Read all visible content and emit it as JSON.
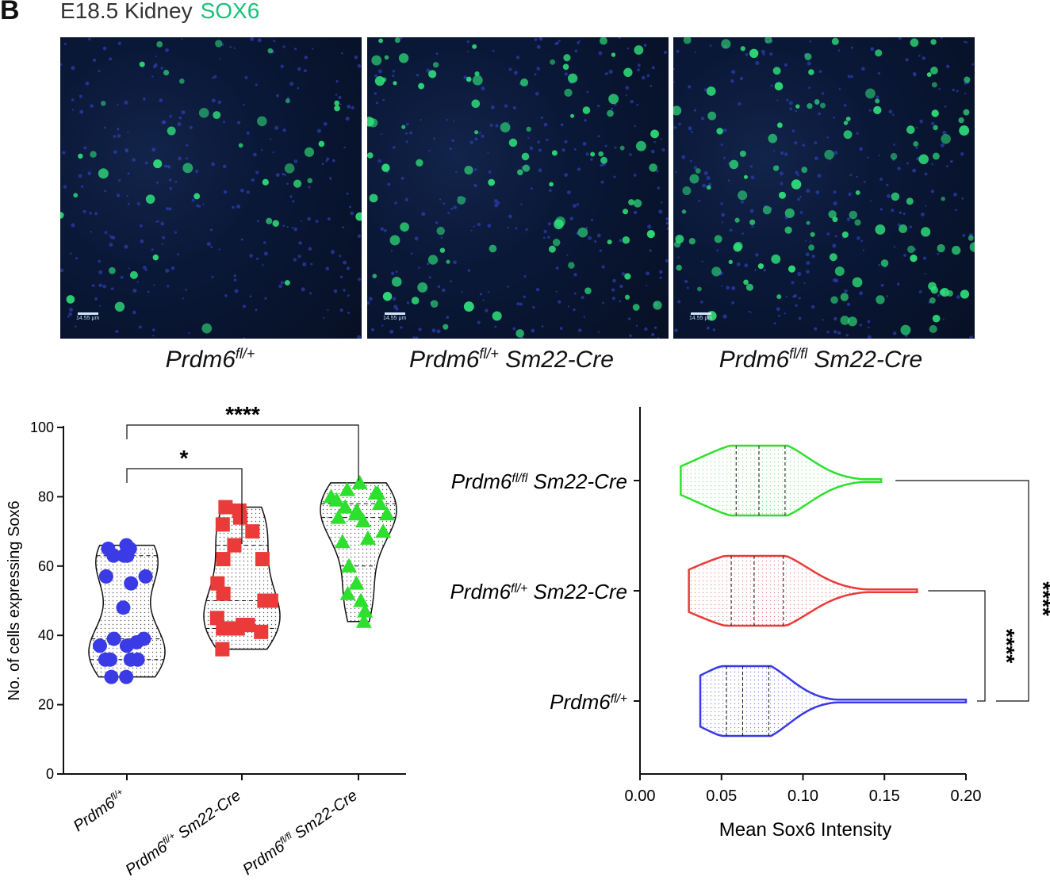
{
  "panel_letter": "B",
  "header": {
    "tissue": "E18.5 Kidney",
    "stain": "SOX6"
  },
  "colors": {
    "stain_green": "#19c27a",
    "blue": "#3a3ae6",
    "red": "#ea3a3a",
    "green": "#2ee02e"
  },
  "micrographs": [
    {
      "genotype": "Prdm6",
      "sup": "fl/+",
      "suffix": "",
      "scale": "14.55 μm"
    },
    {
      "genotype": "Prdm6",
      "sup": "fl/+",
      "suffix": " Sm22-Cre",
      "scale": "14.55 μm"
    },
    {
      "genotype": "Prdm6",
      "sup": "fl/fl",
      "suffix": " Sm22-Cre",
      "scale": "14.55 μm"
    }
  ],
  "chart_data": [
    {
      "type": "violin",
      "ylabel": "No. of cells expressing Sox6",
      "ylim": [
        0,
        100
      ],
      "yticks": [
        0,
        20,
        40,
        60,
        80,
        100
      ],
      "categories": [
        "Prdm6fl/+",
        "Prdm6fl/+ Sm22-Cre",
        "Prdm6fl/fl Sm22-Cre"
      ],
      "category_labels": [
        {
          "genotype": "Prdm6",
          "sup": "fl/+",
          "suffix": ""
        },
        {
          "genotype": "Prdm6",
          "sup": "fl/+",
          "suffix": " Sm22-Cre"
        },
        {
          "genotype": "Prdm6",
          "sup": "fl/fl",
          "suffix": " Sm22-Cre"
        }
      ],
      "series": [
        {
          "values": [
            66,
            65,
            65,
            63,
            63,
            63,
            57,
            57,
            55,
            48,
            39,
            39,
            38,
            37,
            37,
            33,
            33,
            33,
            33,
            28,
            28
          ]
        },
        {
          "values": [
            77,
            76,
            74,
            72,
            70,
            66,
            62,
            62,
            55,
            52,
            50,
            50,
            45,
            43,
            43,
            42,
            42,
            42,
            41,
            36
          ]
        },
        {
          "values": [
            84,
            82,
            81,
            81,
            80,
            79,
            78,
            77,
            76,
            75,
            75,
            74,
            73,
            70,
            68,
            67,
            60,
            55,
            52,
            50,
            47,
            44
          ]
        }
      ],
      "significance": [
        {
          "pair": [
            0,
            1
          ],
          "label": "*"
        },
        {
          "pair": [
            0,
            2
          ],
          "label": "****"
        }
      ]
    },
    {
      "type": "violin",
      "orientation": "horizontal",
      "xlabel": "Mean Sox6 Intensity",
      "xlim": [
        0,
        0.2
      ],
      "xticks": [
        "0.00",
        "0.05",
        "0.10",
        "0.15",
        "0.20"
      ],
      "categories": [
        "Prdm6fl/fl Sm22-Cre",
        "Prdm6fl/+ Sm22-Cre",
        "Prdm6fl/+"
      ],
      "category_labels": [
        {
          "genotype": "Prdm6",
          "sup": "fl/fl",
          "suffix": " Sm22-Cre"
        },
        {
          "genotype": "Prdm6",
          "sup": "fl/+",
          "suffix": " Sm22-Cre"
        },
        {
          "genotype": "Prdm6",
          "sup": "fl/+",
          "suffix": ""
        }
      ],
      "series": [
        {
          "range": [
            0.025,
            0.148
          ],
          "quartiles": [
            0.059,
            0.073,
            0.089
          ]
        },
        {
          "range": [
            0.03,
            0.17
          ],
          "quartiles": [
            0.056,
            0.07,
            0.088
          ]
        },
        {
          "range": [
            0.037,
            0.2
          ],
          "quartiles": [
            0.053,
            0.063,
            0.079
          ]
        }
      ],
      "significance": [
        {
          "pair": [
            1,
            2
          ],
          "label": "****"
        },
        {
          "pair": [
            0,
            2
          ],
          "label": "****"
        }
      ]
    }
  ]
}
